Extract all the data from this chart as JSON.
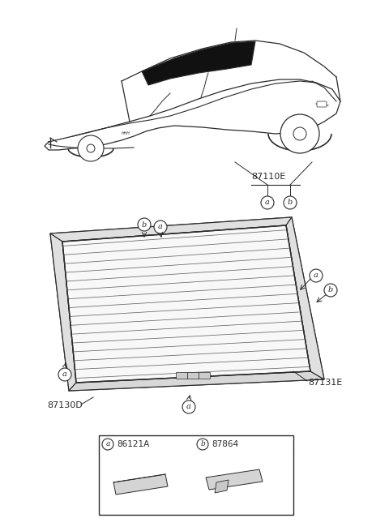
{
  "bg_color": "#ffffff",
  "line_color": "#2a2a2a",
  "part_87110E": "87110E",
  "part_87130D": "87130D",
  "part_87131E": "87131E",
  "part_86121A": "86121A",
  "part_87864": "87864",
  "label_a": "a",
  "label_b": "b",
  "fig_width": 4.8,
  "fig_height": 6.55,
  "dpi": 100
}
